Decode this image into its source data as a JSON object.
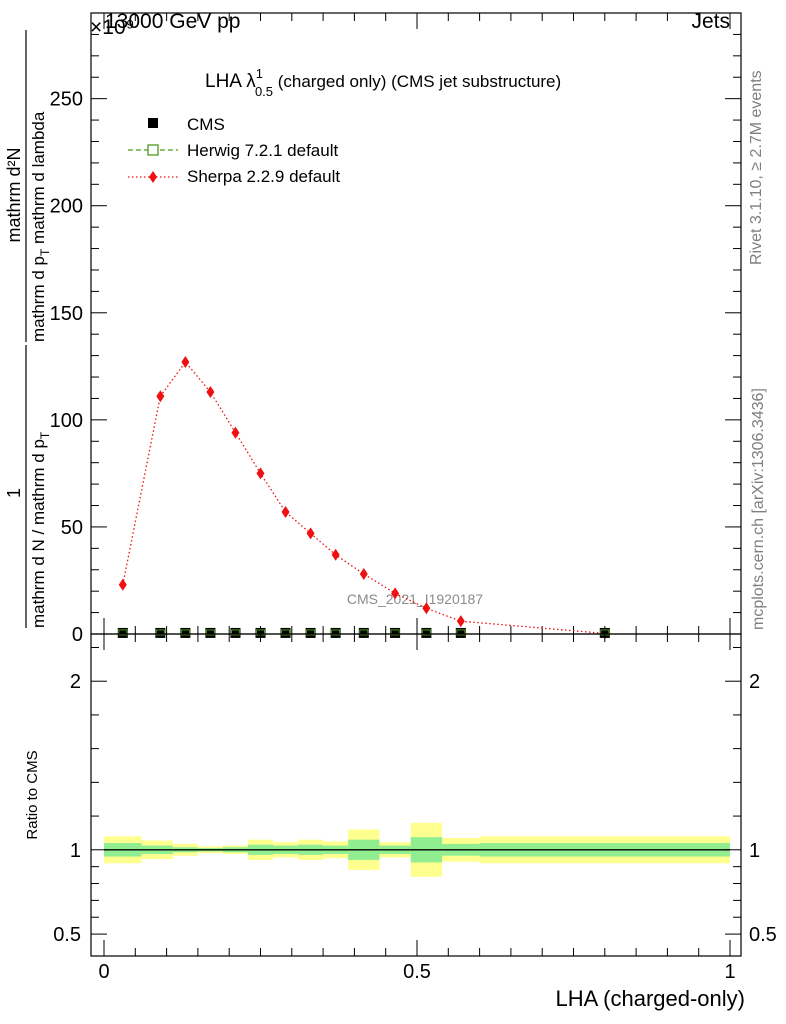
{
  "header": {
    "left": "13000 GeV pp",
    "right": "Jets",
    "exponent_label": "×10⁹"
  },
  "side": {
    "rivet": "Rivet 3.1.10, ≥ 2.7M events",
    "mcplots": "mcplots.cern.ch [arXiv:1306.3436]"
  },
  "watermark": "CMS_2021_I1920187",
  "chart_data": [
    {
      "type": "line",
      "title": {
        "main": "LHA λ",
        "sup": "1",
        "sub": "0.5",
        "rest": " (charged only) (CMS jet substructure)"
      },
      "xlabel": "LHA (charged-only)",
      "ylabel": {
        "numerator": "mathrm d²N",
        "denominator": "mathrm d p",
        "denominator_sub": "T",
        "denominator_rest": " mathrm d lambda",
        "lead_numerator": "1",
        "lead_denominator": "mathrm d N / mathrm d p",
        "lead_denominator_sub": "T"
      },
      "xlim": [
        0,
        1
      ],
      "ylim": [
        0,
        290
      ],
      "yticks": [
        0,
        50,
        100,
        150,
        200,
        250
      ],
      "legend": [
        {
          "name": "CMS",
          "marker": "filled-square"
        },
        {
          "name": "Herwig 7.2.1 default",
          "marker": "open-square",
          "line": "dashed"
        },
        {
          "name": "Sherpa 2.2.9 default",
          "marker": "diamond",
          "line": "dotted"
        }
      ],
      "legend_position": "top-left",
      "colors": {
        "cms": "#000000",
        "herwig": "#4f9a1e",
        "sherpa": "#ee1111"
      },
      "series": [
        {
          "name": "CMS",
          "x": [
            0.03,
            0.09,
            0.13,
            0.17,
            0.21,
            0.25,
            0.29,
            0.33,
            0.37,
            0.415,
            0.465,
            0.515,
            0.57,
            0.8
          ],
          "values": [
            0.5,
            0.5,
            0.5,
            0.5,
            0.5,
            0.5,
            0.5,
            0.5,
            0.5,
            0.5,
            0.5,
            0.5,
            0.5,
            0.5
          ]
        },
        {
          "name": "Sherpa 2.2.9 default",
          "x": [
            0.03,
            0.09,
            0.13,
            0.17,
            0.21,
            0.25,
            0.29,
            0.33,
            0.37,
            0.415,
            0.465,
            0.515,
            0.57,
            0.8
          ],
          "values": [
            23,
            111,
            127,
            113,
            94,
            75,
            57,
            47,
            37,
            28,
            19,
            12,
            6,
            0.3
          ]
        }
      ]
    },
    {
      "type": "area",
      "ylabel": "Ratio to CMS",
      "xlim": [
        0,
        1
      ],
      "ylim": [
        0.37,
        2.28
      ],
      "yticks": [
        0.5,
        1,
        2
      ],
      "xticks": [
        0,
        0.5,
        1
      ],
      "colors": {
        "outer": "#ffff8f",
        "inner": "#90ee90"
      },
      "bins": [
        {
          "x0": 0.0,
          "x1": 0.06,
          "inner_lo": 0.96,
          "inner_hi": 1.04,
          "outer_lo": 0.92,
          "outer_hi": 1.08
        },
        {
          "x0": 0.06,
          "x1": 0.11,
          "inner_lo": 0.975,
          "inner_hi": 1.025,
          "outer_lo": 0.945,
          "outer_hi": 1.055
        },
        {
          "x0": 0.11,
          "x1": 0.15,
          "inner_lo": 0.985,
          "inner_hi": 1.015,
          "outer_lo": 0.965,
          "outer_hi": 1.035
        },
        {
          "x0": 0.15,
          "x1": 0.19,
          "inner_lo": 0.99,
          "inner_hi": 1.01,
          "outer_lo": 0.98,
          "outer_hi": 1.02
        },
        {
          "x0": 0.19,
          "x1": 0.23,
          "inner_lo": 0.985,
          "inner_hi": 1.015,
          "outer_lo": 0.975,
          "outer_hi": 1.025
        },
        {
          "x0": 0.23,
          "x1": 0.27,
          "inner_lo": 0.97,
          "inner_hi": 1.03,
          "outer_lo": 0.94,
          "outer_hi": 1.06
        },
        {
          "x0": 0.27,
          "x1": 0.31,
          "inner_lo": 0.975,
          "inner_hi": 1.025,
          "outer_lo": 0.955,
          "outer_hi": 1.045
        },
        {
          "x0": 0.31,
          "x1": 0.35,
          "inner_lo": 0.97,
          "inner_hi": 1.03,
          "outer_lo": 0.94,
          "outer_hi": 1.06
        },
        {
          "x0": 0.35,
          "x1": 0.39,
          "inner_lo": 0.975,
          "inner_hi": 1.025,
          "outer_lo": 0.95,
          "outer_hi": 1.05
        },
        {
          "x0": 0.39,
          "x1": 0.44,
          "inner_lo": 0.94,
          "inner_hi": 1.06,
          "outer_lo": 0.88,
          "outer_hi": 1.12
        },
        {
          "x0": 0.44,
          "x1": 0.49,
          "inner_lo": 0.975,
          "inner_hi": 1.025,
          "outer_lo": 0.955,
          "outer_hi": 1.045
        },
        {
          "x0": 0.49,
          "x1": 0.54,
          "inner_lo": 0.925,
          "inner_hi": 1.075,
          "outer_lo": 0.84,
          "outer_hi": 1.16
        },
        {
          "x0": 0.54,
          "x1": 0.6,
          "inner_lo": 0.965,
          "inner_hi": 1.035,
          "outer_lo": 0.93,
          "outer_hi": 1.07
        },
        {
          "x0": 0.6,
          "x1": 1.0,
          "inner_lo": 0.96,
          "inner_hi": 1.04,
          "outer_lo": 0.92,
          "outer_hi": 1.08
        }
      ],
      "reference_line": 1
    }
  ]
}
